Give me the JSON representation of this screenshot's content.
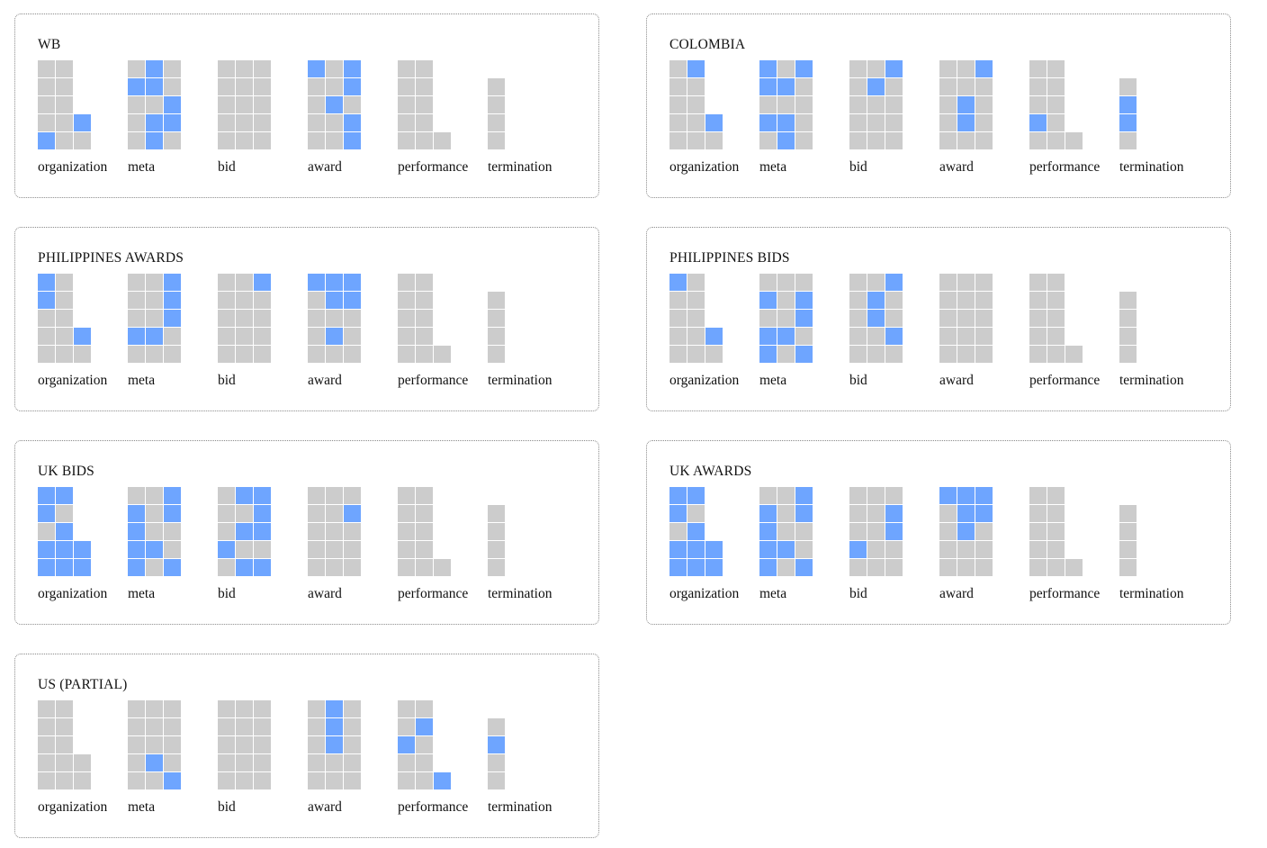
{
  "colors": {
    "empty": "#cccccc",
    "filled": "#6ea5ff"
  },
  "chart_data": {
    "type": "heatmap",
    "categories": [
      "organization",
      "meta",
      "bid",
      "award",
      "performance",
      "termination"
    ],
    "panels": [
      {
        "title": "WB",
        "groups": [
          {
            "label": "organization",
            "rows": [
              "00",
              "00",
              "00",
              "001",
              "100"
            ]
          },
          {
            "label": "meta",
            "rows": [
              "010",
              "110",
              "001",
              "011",
              "010"
            ]
          },
          {
            "label": "bid",
            "rows": [
              "000",
              "000",
              "000",
              "000",
              "000"
            ]
          },
          {
            "label": "award",
            "rows": [
              "101",
              "001",
              "010",
              "001",
              "001"
            ]
          },
          {
            "label": "performance",
            "rows": [
              "00",
              "00",
              "00",
              "00",
              "000"
            ]
          },
          {
            "label": "termination",
            "rows": [
              "",
              "0",
              "0",
              "0",
              "0"
            ]
          }
        ]
      },
      {
        "title": "COLOMBIA",
        "groups": [
          {
            "label": "organization",
            "rows": [
              "01",
              "00",
              "00",
              "001",
              "000"
            ]
          },
          {
            "label": "meta",
            "rows": [
              "101",
              "110",
              "000",
              "110",
              "010"
            ]
          },
          {
            "label": "bid",
            "rows": [
              "001",
              "010",
              "000",
              "000",
              "000"
            ]
          },
          {
            "label": "award",
            "rows": [
              "001",
              "000",
              "010",
              "010",
              "000"
            ]
          },
          {
            "label": "performance",
            "rows": [
              "00",
              "00",
              "00",
              "10",
              "000"
            ]
          },
          {
            "label": "termination",
            "rows": [
              "",
              "0",
              "1",
              "1",
              "0"
            ]
          }
        ]
      },
      {
        "title": "PHILIPPINES AWARDS",
        "groups": [
          {
            "label": "organization",
            "rows": [
              "10",
              "10",
              "00",
              "001",
              "000"
            ]
          },
          {
            "label": "meta",
            "rows": [
              "001",
              "001",
              "001",
              "110",
              "000"
            ]
          },
          {
            "label": "bid",
            "rows": [
              "001",
              "000",
              "000",
              "000",
              "000"
            ]
          },
          {
            "label": "award",
            "rows": [
              "111",
              "011",
              "000",
              "010",
              "000"
            ]
          },
          {
            "label": "performance",
            "rows": [
              "00",
              "00",
              "00",
              "00",
              "000"
            ]
          },
          {
            "label": "termination",
            "rows": [
              "",
              "0",
              "0",
              "0",
              "0"
            ]
          }
        ]
      },
      {
        "title": "PHILIPPINES BIDS",
        "groups": [
          {
            "label": "organization",
            "rows": [
              "10",
              "00",
              "00",
              "001",
              "000"
            ]
          },
          {
            "label": "meta",
            "rows": [
              "000",
              "101",
              "001",
              "110",
              "101"
            ]
          },
          {
            "label": "bid",
            "rows": [
              "001",
              "010",
              "010",
              "001",
              "000"
            ]
          },
          {
            "label": "award",
            "rows": [
              "000",
              "000",
              "000",
              "000",
              "000"
            ]
          },
          {
            "label": "performance",
            "rows": [
              "00",
              "00",
              "00",
              "00",
              "000"
            ]
          },
          {
            "label": "termination",
            "rows": [
              "",
              "0",
              "0",
              "0",
              "0"
            ]
          }
        ]
      },
      {
        "title": "UK BIDS",
        "groups": [
          {
            "label": "organization",
            "rows": [
              "11",
              "10",
              "01",
              "111",
              "111"
            ]
          },
          {
            "label": "meta",
            "rows": [
              "001",
              "101",
              "100",
              "110",
              "101"
            ]
          },
          {
            "label": "bid",
            "rows": [
              "011",
              "001",
              "011",
              "100",
              "011"
            ]
          },
          {
            "label": "award",
            "rows": [
              "000",
              "001",
              "000",
              "000",
              "000"
            ]
          },
          {
            "label": "performance",
            "rows": [
              "00",
              "00",
              "00",
              "00",
              "000"
            ]
          },
          {
            "label": "termination",
            "rows": [
              "",
              "0",
              "0",
              "0",
              "0"
            ]
          }
        ]
      },
      {
        "title": "UK AWARDS",
        "groups": [
          {
            "label": "organization",
            "rows": [
              "11",
              "10",
              "01",
              "111",
              "111"
            ]
          },
          {
            "label": "meta",
            "rows": [
              "001",
              "101",
              "100",
              "110",
              "101"
            ]
          },
          {
            "label": "bid",
            "rows": [
              "000",
              "001",
              "001",
              "100",
              "000"
            ]
          },
          {
            "label": "award",
            "rows": [
              "111",
              "011",
              "010",
              "000",
              "000"
            ]
          },
          {
            "label": "performance",
            "rows": [
              "00",
              "00",
              "00",
              "00",
              "000"
            ]
          },
          {
            "label": "termination",
            "rows": [
              "",
              "0",
              "0",
              "0",
              "0"
            ]
          }
        ]
      },
      {
        "title": "US (PARTIAL)",
        "groups": [
          {
            "label": "organization",
            "rows": [
              "00",
              "00",
              "00",
              "000",
              "000"
            ]
          },
          {
            "label": "meta",
            "rows": [
              "000",
              "000",
              "000",
              "010",
              "001"
            ]
          },
          {
            "label": "bid",
            "rows": [
              "000",
              "000",
              "000",
              "000",
              "000"
            ]
          },
          {
            "label": "award",
            "rows": [
              "010",
              "010",
              "010",
              "000",
              "000"
            ]
          },
          {
            "label": "performance",
            "rows": [
              "00",
              "01",
              "10",
              "00",
              "001"
            ]
          },
          {
            "label": "termination",
            "rows": [
              "",
              "0",
              "1",
              "0",
              "0"
            ]
          }
        ]
      }
    ]
  }
}
